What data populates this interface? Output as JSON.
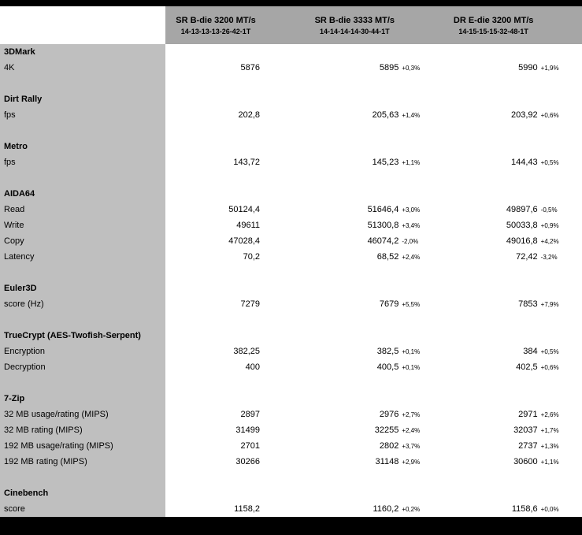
{
  "colors": {
    "header_bg": "#a6a6a6",
    "label_col_bg": "#bfbfbf",
    "border_bar": "#000000",
    "data_bg": "#ffffff",
    "text": "#000000"
  },
  "chart_data": {
    "type": "table",
    "columns": [
      {
        "name": "SR B-die 3200 MT/s",
        "timings": "14-13-13-13-26-42-1T"
      },
      {
        "name": "SR B-die 3333 MT/s",
        "timings": "14-14-14-14-30-44-1T"
      },
      {
        "name": "DR E-die 3200 MT/s",
        "timings": "14-15-15-15-32-48-1T"
      }
    ],
    "sections": [
      {
        "title": "3DMark",
        "rows": [
          {
            "label": "4K",
            "values": [
              "5876",
              "5895",
              "5990"
            ],
            "deltas": [
              "",
              "+0,3%",
              "+1,9%"
            ]
          }
        ]
      },
      {
        "title": "Dirt Rally",
        "rows": [
          {
            "label": "fps",
            "values": [
              "202,8",
              "205,63",
              "203,92"
            ],
            "deltas": [
              "",
              "+1,4%",
              "+0,6%"
            ]
          }
        ]
      },
      {
        "title": "Metro",
        "rows": [
          {
            "label": "fps",
            "values": [
              "143,72",
              "145,23",
              "144,43"
            ],
            "deltas": [
              "",
              "+1,1%",
              "+0,5%"
            ]
          }
        ]
      },
      {
        "title": "AIDA64",
        "rows": [
          {
            "label": "Read",
            "values": [
              "50124,4",
              "51646,4",
              "49897,6"
            ],
            "deltas": [
              "",
              "+3,0%",
              "-0,5%"
            ]
          },
          {
            "label": "Write",
            "values": [
              "49611",
              "51300,8",
              "50033,8"
            ],
            "deltas": [
              "",
              "+3,4%",
              "+0,9%"
            ]
          },
          {
            "label": "Copy",
            "values": [
              "47028,4",
              "46074,2",
              "49016,8"
            ],
            "deltas": [
              "",
              "-2,0%",
              "+4,2%"
            ]
          },
          {
            "label": "Latency",
            "values": [
              "70,2",
              "68,52",
              "72,42"
            ],
            "deltas": [
              "",
              "+2,4%",
              "-3,2%"
            ]
          }
        ]
      },
      {
        "title": "Euler3D",
        "rows": [
          {
            "label": "score (Hz)",
            "values": [
              "7279",
              "7679",
              "7853"
            ],
            "deltas": [
              "",
              "+5,5%",
              "+7,9%"
            ]
          }
        ]
      },
      {
        "title": "TrueCrypt (AES-Twofish-Serpent)",
        "rows": [
          {
            "label": "Encryption",
            "values": [
              "382,25",
              "382,5",
              "384"
            ],
            "deltas": [
              "",
              "+0,1%",
              "+0,5%"
            ]
          },
          {
            "label": "Decryption",
            "values": [
              "400",
              "400,5",
              "402,5"
            ],
            "deltas": [
              "",
              "+0,1%",
              "+0,6%"
            ]
          }
        ]
      },
      {
        "title": "7-Zip",
        "rows": [
          {
            "label": "32 MB usage/rating (MIPS)",
            "values": [
              "2897",
              "2976",
              "2971"
            ],
            "deltas": [
              "",
              "+2,7%",
              "+2,6%"
            ]
          },
          {
            "label": "32 MB rating (MIPS)",
            "values": [
              "31499",
              "32255",
              "32037"
            ],
            "deltas": [
              "",
              "+2,4%",
              "+1,7%"
            ]
          },
          {
            "label": "192 MB usage/rating (MIPS)",
            "values": [
              "2701",
              "2802",
              "2737"
            ],
            "deltas": [
              "",
              "+3,7%",
              "+1,3%"
            ]
          },
          {
            "label": "192 MB rating (MIPS)",
            "values": [
              "30266",
              "31148",
              "30600"
            ],
            "deltas": [
              "",
              "+2,9%",
              "+1,1%"
            ]
          }
        ]
      },
      {
        "title": "Cinebench",
        "rows": [
          {
            "label": "score",
            "values": [
              "1158,2",
              "1160,2",
              "1158,6"
            ],
            "deltas": [
              "",
              "+0,2%",
              "+0,0%"
            ]
          }
        ]
      }
    ]
  }
}
